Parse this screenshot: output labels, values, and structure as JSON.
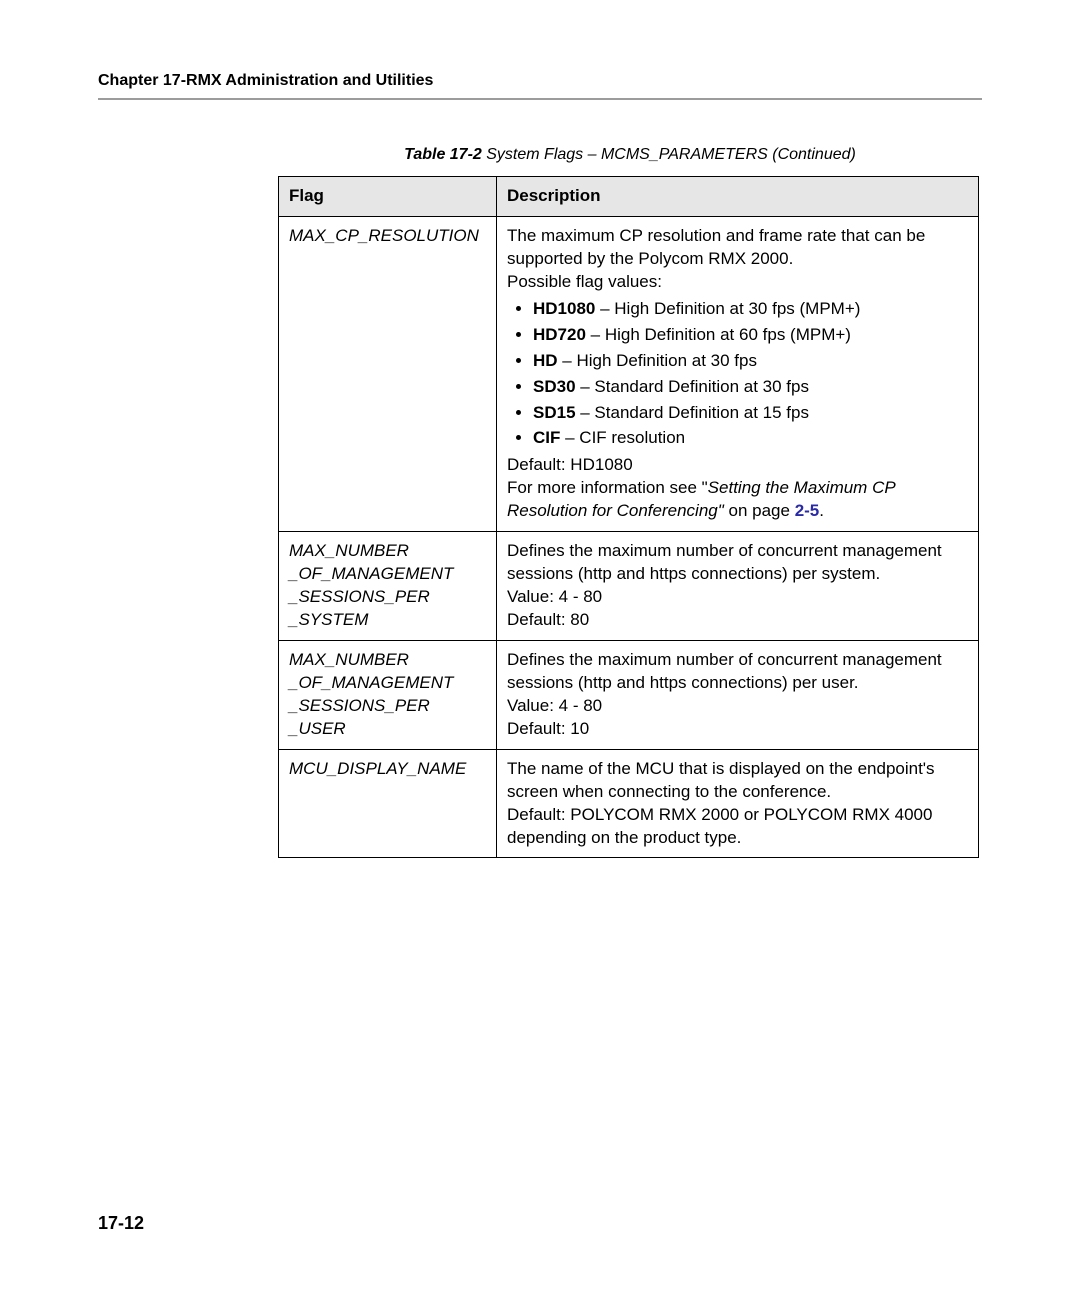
{
  "header": {
    "chapter_title": "Chapter 17-RMX Administration and Utilities"
  },
  "table": {
    "caption_strong": "Table 17-2",
    "caption_rest": "  System Flags – MCMS_PARAMETERS (Continued)",
    "columns": {
      "flag": "Flag",
      "description": "Description"
    },
    "rows": {
      "r0": {
        "flag_l1": "MAX_CP_RESOLUTION",
        "desc_intro_l1": "The maximum CP resolution and frame rate that can be supported by the Polycom RMX 2000.",
        "desc_intro_l2": "Possible flag values:",
        "b1_b": "HD1080",
        "b1_rest": " – High Definition at 30 fps (MPM+)",
        "b2_b": "HD720",
        "b2_rest": " – High Definition at 60 fps (MPM+)",
        "b3_b": "HD",
        "b3_rest": " – High Definition at 30 fps",
        "b4_b": "SD30",
        "b4_rest": " – Standard Definition at 30 fps",
        "b5_b": "SD15",
        "b5_rest": " – Standard Definition at 15 fps",
        "b6_b": "CIF",
        "b6_rest": " – CIF resolution",
        "default_line": "Default: HD1080",
        "more_a": "For more information see \"",
        "more_i": "Setting the Maximum CP Resolution for Conferencing\"",
        "more_b": " on page ",
        "page_ref": "2-5",
        "more_c": "."
      },
      "r1": {
        "flag_l1": "MAX_NUMBER",
        "flag_l2": "_OF_MANAGEMENT",
        "flag_l3": "_SESSIONS_PER",
        "flag_l4": "_SYSTEM",
        "d1": "Defines the maximum number of concurrent management sessions (http and https connections) per system.",
        "d2": "Value: 4 - 80",
        "d3": "Default: 80"
      },
      "r2": {
        "flag_l1": "MAX_NUMBER",
        "flag_l2": "_OF_MANAGEMENT",
        "flag_l3": "_SESSIONS_PER",
        "flag_l4": "_USER",
        "d1": "Defines the maximum number of concurrent management sessions (http and https connections) per user.",
        "d2": "Value: 4 - 80",
        "d3": "Default: 10"
      },
      "r3": {
        "flag_l1": "MCU_DISPLAY_NAME",
        "d1": "The name of the MCU that is displayed on the endpoint's screen when connecting to the conference.",
        "d2": "Default: POLYCOM RMX 2000 or POLYCOM RMX 4000 depending on the product type."
      }
    }
  },
  "footer": {
    "page_number": "17-12"
  },
  "style": {
    "header_rule_color": "#9c9c9c",
    "table_header_bg": "#e6e6e6",
    "page_ref_color": "#2a2aa8"
  }
}
